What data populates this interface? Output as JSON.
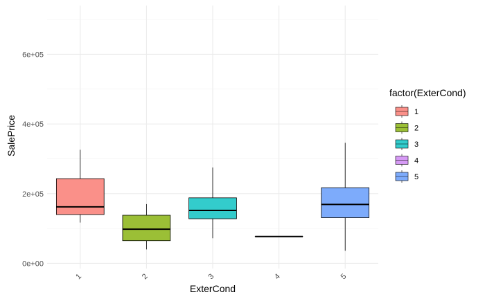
{
  "chart_data": {
    "type": "box",
    "xlabel": "ExterCond",
    "ylabel": "SalePrice",
    "ylim": [
      -15000,
      740000
    ],
    "yticks": [
      0,
      200000,
      400000,
      600000
    ],
    "ytick_labels": [
      "0e+00",
      "2e+05",
      "4e+05",
      "6e+05"
    ],
    "categories": [
      "1",
      "2",
      "3",
      "4",
      "5"
    ],
    "grid": true,
    "legend": {
      "title": "factor(ExterCond)",
      "placement": "right",
      "entries": [
        "1",
        "2",
        "3",
        "4",
        "5"
      ]
    },
    "colors": [
      "#F8766D",
      "#A3A500",
      "#00BFC4",
      "#E76BF3",
      "#619CFF"
    ],
    "fill_colors": [
      "#FA9089",
      "#9BBF36",
      "#33CCCC",
      "#D69AF5",
      "#7DABFB"
    ],
    "boxes": [
      {
        "category": "1",
        "whisker_low": 117000,
        "q1": 140000,
        "median": 162000,
        "q3": 243000,
        "whisker_high": 326000
      },
      {
        "category": "2",
        "whisker_low": 40000,
        "q1": 65000,
        "median": 98000,
        "q3": 138000,
        "whisker_high": 170000
      },
      {
        "category": "3",
        "whisker_low": 72000,
        "q1": 128000,
        "median": 152000,
        "q3": 188000,
        "whisker_high": 275000
      },
      {
        "category": "4",
        "whisker_low": 77000,
        "q1": 77000,
        "median": 77000,
        "q3": 77000,
        "whisker_high": 77000
      },
      {
        "category": "5",
        "whisker_low": 36000,
        "q1": 131000,
        "median": 169000,
        "q3": 217000,
        "whisker_high": 346000
      }
    ]
  }
}
